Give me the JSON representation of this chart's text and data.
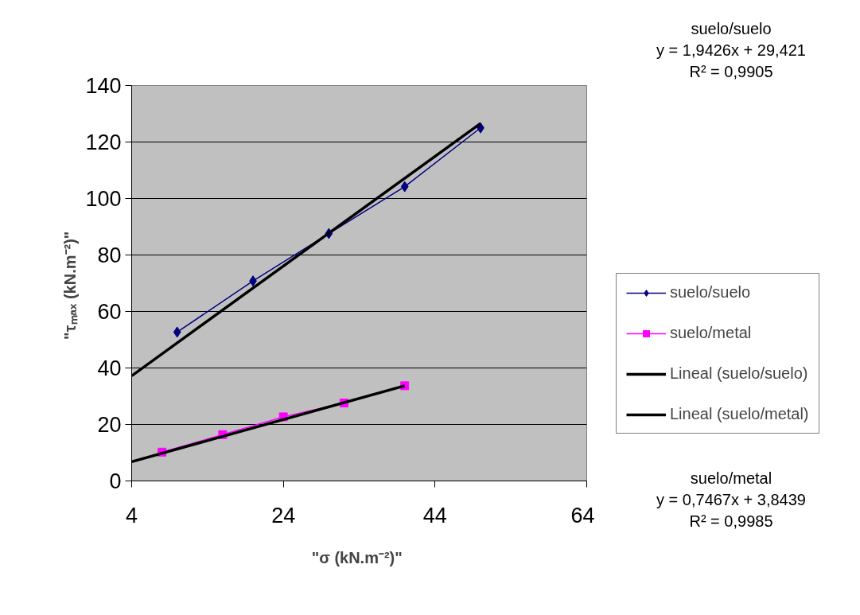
{
  "chart_data": {
    "type": "line",
    "xlabel": "\"σ  (kN.m⁻²)\"",
    "ylabel": "\"τₘₐₓ  (kN.m⁻²)\"",
    "xlim": [
      4,
      64
    ],
    "xticks": [
      4,
      24,
      44,
      64
    ],
    "ylim": [
      0,
      140
    ],
    "yticks": [
      0,
      20,
      40,
      60,
      80,
      100,
      120,
      140
    ],
    "grid": "y",
    "legend": "right",
    "line_style": "solid",
    "series": [
      {
        "name": "suelo/suelo",
        "color": "#000080",
        "marker": "diamond",
        "x": [
          10,
          20,
          30,
          40,
          50
        ],
        "values": [
          52.7,
          70.8,
          87.6,
          104.2,
          125.0
        ]
      },
      {
        "name": "suelo/metal",
        "color": "#ff00ff",
        "marker": "square",
        "x": [
          8,
          16,
          24,
          32,
          40
        ],
        "values": [
          10.2,
          16.4,
          22.7,
          27.6,
          33.7
        ]
      },
      {
        "name": "Lineal (suelo/suelo)",
        "color": "#000000",
        "marker": "none",
        "x": [
          4,
          50
        ],
        "values": [
          37.2,
          126.6
        ]
      },
      {
        "name": "Lineal (suelo/metal)",
        "color": "#000000",
        "marker": "none",
        "x": [
          4,
          40
        ],
        "values": [
          6.8,
          33.7
        ]
      }
    ],
    "annotations": [
      "suelo/suelo\ny = 1,9426x + 29,421\nR² = 0,9905",
      "suelo/metal\ny = 0,7467x + 3,8439\nR² = 0,9985"
    ]
  }
}
